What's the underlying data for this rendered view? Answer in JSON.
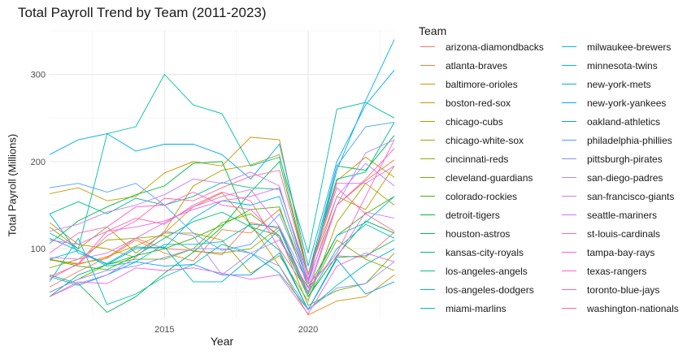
{
  "chart_data": {
    "type": "line",
    "title": "Total Payroll Trend by Team (2011-2023)",
    "xlabel": "Year",
    "ylabel": "Total Payroll (Millions)",
    "xlim": [
      2011,
      2023
    ],
    "ylim": [
      20,
      350
    ],
    "x_ticks": [
      2015,
      2020
    ],
    "y_ticks": [
      100,
      200,
      300
    ],
    "grid": true,
    "legend_title": "Team",
    "legend_position": "right",
    "x": [
      2011,
      2012,
      2013,
      2014,
      2015,
      2016,
      2017,
      2018,
      2019,
      2020,
      2021,
      2022,
      2023
    ],
    "series": [
      {
        "name": "arizona-diamondbacks",
        "color": "#F8766D",
        "values": [
          56,
          74,
          90,
          112,
          100,
          98,
          93,
          130,
          123,
          45,
          92,
          90,
          119
        ]
      },
      {
        "name": "atlanta-braves",
        "color": "#EE7F3C",
        "values": [
          87,
          83,
          89,
          110,
          95,
          86,
          122,
          118,
          145,
          64,
          150,
          178,
          202
        ]
      },
      {
        "name": "baltimore-orioles",
        "color": "#DE8C00",
        "values": [
          88,
          82,
          91,
          103,
          118,
          148,
          164,
          128,
          80,
          24,
          40,
          45,
          70
        ]
      },
      {
        "name": "boston-red-sox",
        "color": "#CD9600",
        "values": [
          163,
          170,
          155,
          160,
          187,
          200,
          195,
          228,
          225,
          70,
          178,
          205,
          182
        ]
      },
      {
        "name": "chicago-cubs",
        "color": "#BB9D00",
        "values": [
          130,
          105,
          100,
          90,
          120,
          172,
          190,
          196,
          208,
          70,
          160,
          145,
          195
        ]
      },
      {
        "name": "chicago-white-sox",
        "color": "#A6A300",
        "values": [
          125,
          100,
          125,
          95,
          118,
          118,
          110,
          72,
          92,
          40,
          130,
          175,
          150
        ]
      },
      {
        "name": "cincinnati-reds",
        "color": "#8EAB00",
        "values": [
          78,
          88,
          110,
          112,
          115,
          97,
          95,
          100,
          125,
          48,
          110,
          88,
          75
        ]
      },
      {
        "name": "cleveland-guardians",
        "color": "#6EB100",
        "values": [
          50,
          65,
          82,
          88,
          88,
          100,
          130,
          140,
          115,
          35,
          52,
          60,
          95
        ]
      },
      {
        "name": "colorado-rockies",
        "color": "#3FB600",
        "values": [
          88,
          80,
          76,
          92,
          100,
          112,
          127,
          145,
          148,
          55,
          115,
          140,
          160
        ]
      },
      {
        "name": "detroit-tigers",
        "color": "#00BA38",
        "values": [
          106,
          132,
          148,
          162,
          172,
          198,
          200,
          125,
          115,
          45,
          92,
          132,
          118
        ]
      },
      {
        "name": "houston-astros",
        "color": "#00BC51",
        "values": [
          70,
          60,
          27,
          45,
          72,
          96,
          125,
          165,
          200,
          70,
          195,
          190,
          230
        ]
      },
      {
        "name": "kansas-city-royals",
        "color": "#00BE70",
        "values": [
          45,
          70,
          82,
          92,
          112,
          131,
          142,
          125,
          98,
          30,
          90,
          92,
          110
        ]
      },
      {
        "name": "los-angeles-angels",
        "color": "#00BF89",
        "values": [
          140,
          154,
          140,
          158,
          150,
          160,
          176,
          170,
          168,
          70,
          180,
          188,
          245
        ]
      },
      {
        "name": "los-angeles-dodgers",
        "color": "#00C0A0",
        "values": [
          118,
          100,
          232,
          240,
          300,
          265,
          255,
          195,
          205,
          95,
          260,
          268,
          250
        ]
      },
      {
        "name": "miami-marlins",
        "color": "#00BFB5",
        "values": [
          62,
          112,
          36,
          48,
          68,
          82,
          105,
          95,
          72,
          30,
          58,
          82,
          100
        ]
      },
      {
        "name": "milwaukee-brewers",
        "color": "#00BCC8",
        "values": [
          88,
          98,
          82,
          100,
          102,
          62,
          62,
          90,
          122,
          45,
          100,
          128,
          112
        ]
      },
      {
        "name": "minnesota-twins",
        "color": "#00B8D9",
        "values": [
          112,
          98,
          80,
          85,
          105,
          105,
          108,
          128,
          125,
          50,
          115,
          130,
          160
        ]
      },
      {
        "name": "new-york-mets",
        "color": "#00B2E7",
        "values": [
          140,
          95,
          83,
          102,
          101,
          135,
          155,
          150,
          160,
          60,
          190,
          270,
          340
        ]
      },
      {
        "name": "new-york-yankees",
        "color": "#00ABF3",
        "values": [
          208,
          225,
          232,
          212,
          220,
          220,
          208,
          180,
          220,
          80,
          200,
          265,
          305
        ]
      },
      {
        "name": "oakland-athletics",
        "color": "#00A3FB",
        "values": [
          68,
          58,
          70,
          85,
          80,
          82,
          70,
          70,
          95,
          30,
          88,
          48,
          62
        ]
      },
      {
        "name": "philadelphia-phillies",
        "color": "#4C9FFF",
        "values": [
          170,
          175,
          165,
          175,
          150,
          118,
          98,
          105,
          140,
          60,
          195,
          240,
          245
        ]
      },
      {
        "name": "pittsburgh-pirates",
        "color": "#8B93FF",
        "values": [
          50,
          65,
          75,
          80,
          90,
          100,
          100,
          95,
          80,
          30,
          55,
          60,
          85
        ]
      },
      {
        "name": "san-diego-padres",
        "color": "#AE87FF",
        "values": [
          45,
          60,
          70,
          90,
          120,
          115,
          70,
          95,
          110,
          55,
          150,
          210,
          225
        ]
      },
      {
        "name": "san-francisco-giants",
        "color": "#C77CFF",
        "values": [
          120,
          128,
          142,
          150,
          162,
          180,
          175,
          188,
          172,
          60,
          160,
          198,
          172
        ]
      },
      {
        "name": "seattle-mariners",
        "color": "#DC71FA",
        "values": [
          90,
          88,
          95,
          112,
          130,
          148,
          160,
          168,
          125,
          60,
          90,
          142,
          135
        ]
      },
      {
        "name": "st-louis-cardinals",
        "color": "#EB67ED",
        "values": [
          110,
          105,
          120,
          125,
          132,
          145,
          155,
          160,
          170,
          65,
          175,
          175,
          195
        ]
      },
      {
        "name": "tampa-bay-rays",
        "color": "#F763DF",
        "values": [
          45,
          62,
          60,
          78,
          75,
          78,
          72,
          65,
          70,
          25,
          80,
          95,
          85
        ]
      },
      {
        "name": "texas-rangers",
        "color": "#FE61CB",
        "values": [
          95,
          118,
          125,
          148,
          150,
          165,
          150,
          145,
          112,
          55,
          95,
          160,
          225
        ]
      },
      {
        "name": "toronto-blue-jays",
        "color": "#FF63B6",
        "values": [
          65,
          83,
          120,
          135,
          128,
          150,
          165,
          155,
          100,
          50,
          150,
          180,
          215
        ]
      },
      {
        "name": "washington-nationals",
        "color": "#FF689F",
        "values": [
          68,
          82,
          115,
          132,
          158,
          155,
          170,
          183,
          190,
          70,
          170,
          140,
          120
        ]
      }
    ]
  }
}
